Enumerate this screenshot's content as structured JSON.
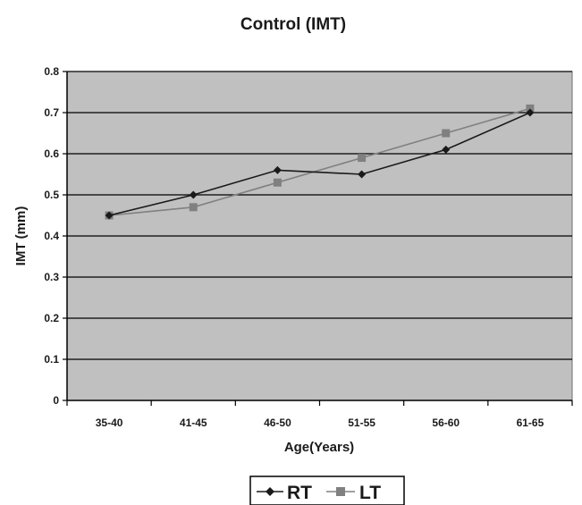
{
  "chart_data": {
    "type": "line",
    "title": "Control (IMT)",
    "xlabel": "Age(Years)",
    "ylabel": "IMT (mm)",
    "categories": [
      "35-40",
      "41-45",
      "46-50",
      "51-55",
      "56-60",
      "61-65"
    ],
    "ylim": [
      0,
      0.8
    ],
    "yticks": [
      "0",
      "0.1",
      "0.2",
      "0.3",
      "0.4",
      "0.5",
      "0.6",
      "0.7",
      "0.8"
    ],
    "grid": true,
    "legend_position": "bottom",
    "plot_background": "#c0c0c0",
    "series": [
      {
        "name": "RT",
        "values": [
          0.45,
          0.5,
          0.56,
          0.55,
          0.61,
          0.7
        ],
        "color": "#1a1a1a",
        "marker": "diamond"
      },
      {
        "name": "LT",
        "values": [
          0.45,
          0.47,
          0.53,
          0.59,
          0.65,
          0.71
        ],
        "color": "#808080",
        "marker": "square"
      }
    ]
  }
}
